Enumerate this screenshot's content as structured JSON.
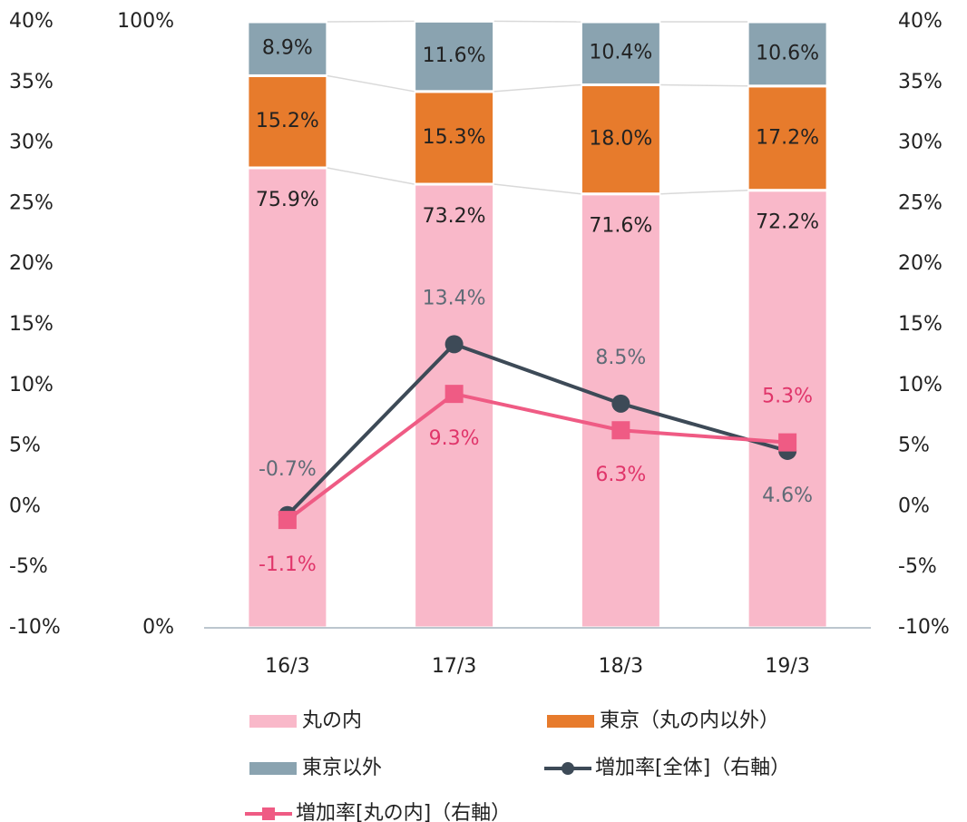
{
  "chart_data": {
    "type": "bar",
    "stacked": true,
    "categories": [
      "16/3",
      "17/3",
      "18/3",
      "19/3"
    ],
    "series": [
      {
        "name": "丸の内",
        "type": "bar",
        "color": "#f9b8c9",
        "label_color": "#222222",
        "values": [
          75.9,
          73.2,
          71.6,
          72.2
        ],
        "value_labels": [
          "75.9%",
          "73.2%",
          "71.6%",
          "72.2%"
        ]
      },
      {
        "name": "東京（丸の内以外）",
        "type": "bar",
        "color": "#e77b2c",
        "label_color": "#222222",
        "values": [
          15.2,
          15.3,
          18.0,
          17.2
        ],
        "value_labels": [
          "15.2%",
          "15.3%",
          "18.0%",
          "17.2%"
        ]
      },
      {
        "name": "東京以外",
        "type": "bar",
        "color": "#8aa3b0",
        "label_color": "#222222",
        "values": [
          8.9,
          11.6,
          10.4,
          10.6
        ],
        "value_labels": [
          "8.9%",
          "11.6%",
          "10.4%",
          "10.6%"
        ]
      },
      {
        "name": "増加率[全体]（右軸）",
        "type": "line",
        "axis": "y2",
        "marker": "circle",
        "color": "#3d4a57",
        "label_color": "#5f6b76",
        "values": [
          -0.7,
          13.4,
          8.5,
          4.6
        ],
        "value_labels": [
          "-0.7%",
          "13.4%",
          "8.5%",
          "4.6%"
        ]
      },
      {
        "name": "増加率[丸の内]（右軸）",
        "type": "line",
        "axis": "y2",
        "marker": "square",
        "color": "#ef5b84",
        "label_color": "#e0356a",
        "values": [
          -1.1,
          9.3,
          6.3,
          5.3
        ],
        "value_labels": [
          "-1.1%",
          "9.3%",
          "6.3%",
          "5.3%"
        ]
      }
    ],
    "ylim": [
      0,
      100
    ],
    "yticks": [
      {
        "value": 0,
        "label": "0%"
      },
      {
        "value": 100,
        "label": "100%"
      }
    ],
    "y2lim": [
      -10,
      40
    ],
    "y2ticks": [
      {
        "value": -10,
        "label": "-10%"
      },
      {
        "value": -5,
        "label": "-5%"
      },
      {
        "value": 0,
        "label": "0%"
      },
      {
        "value": 5,
        "label": "5%"
      },
      {
        "value": 10,
        "label": "10%"
      },
      {
        "value": 15,
        "label": "15%"
      },
      {
        "value": 20,
        "label": "20%"
      },
      {
        "value": 25,
        "label": "25%"
      },
      {
        "value": 30,
        "label": "30%"
      },
      {
        "value": 35,
        "label": "35%"
      },
      {
        "value": 40,
        "label": "40%"
      }
    ],
    "grid": false
  }
}
